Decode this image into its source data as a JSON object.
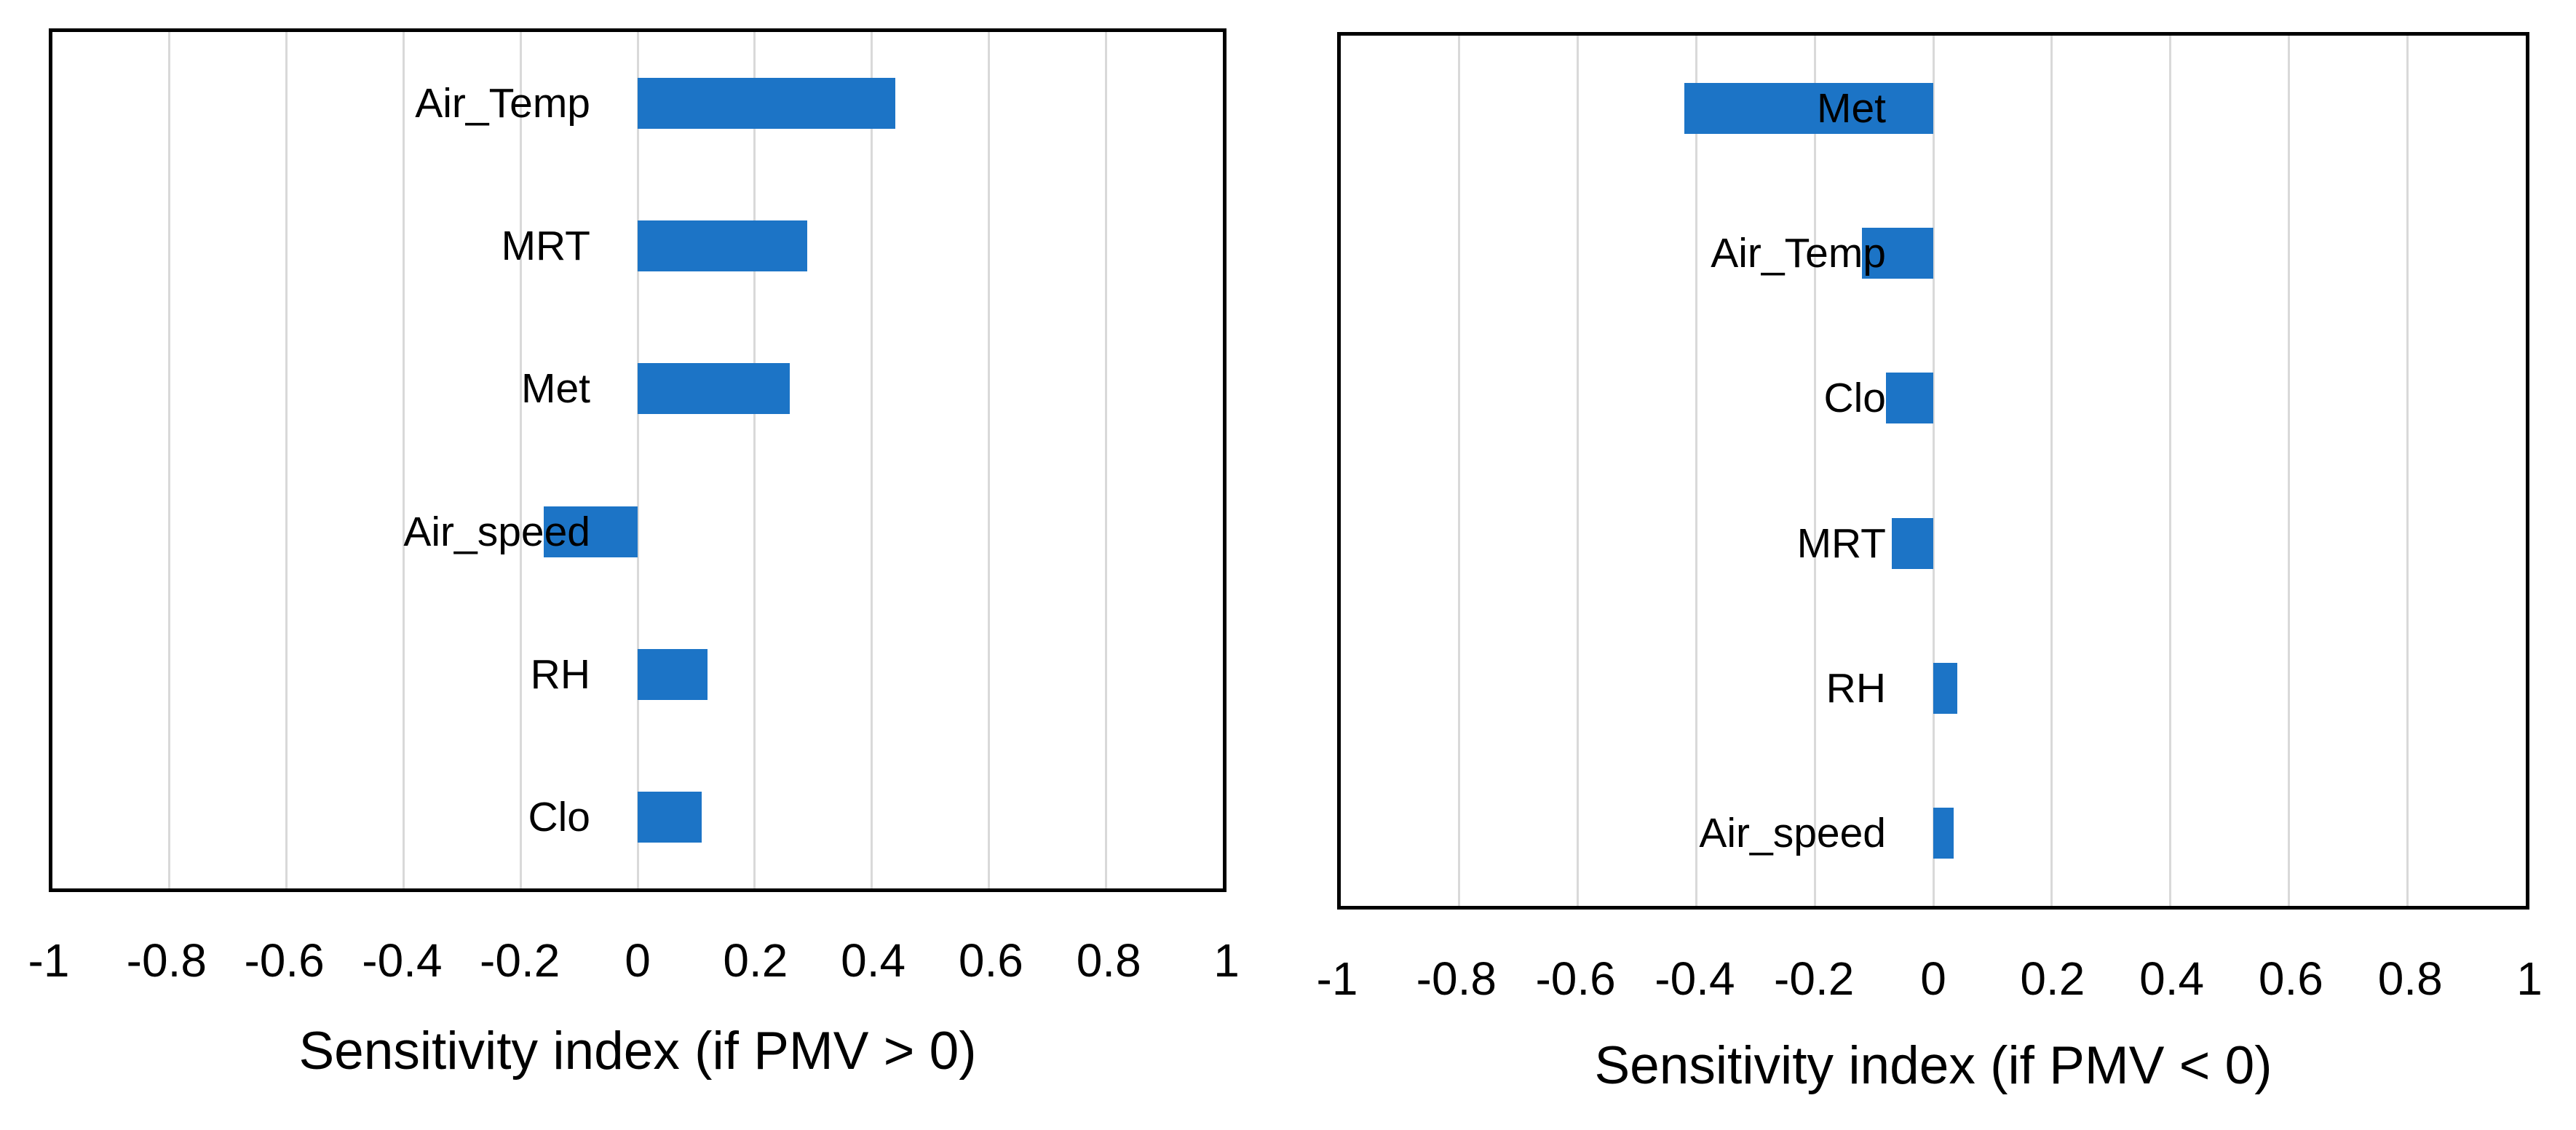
{
  "page": {
    "background_color": "#FFFFFF",
    "text_color": "#000000"
  },
  "chart_data": [
    {
      "type": "bar",
      "orientation": "horizontal",
      "title": "",
      "xlabel": "Sensitivity index (if PMV > 0)",
      "ylabel": "",
      "categories": [
        "Air_Temp",
        "MRT",
        "Met",
        "Air_speed",
        "RH",
        "Clo"
      ],
      "values": [
        0.44,
        0.29,
        0.26,
        -0.16,
        0.12,
        0.11
      ],
      "xlim": [
        -1,
        1
      ],
      "xtick_labels": [
        "-1",
        "-0.8",
        "-0.6",
        "-0.4",
        "-0.2",
        "0",
        "0.2",
        "0.4",
        "0.6",
        "0.8",
        "1"
      ],
      "grid": true,
      "legend": "none",
      "bar_color": "#1C74C6",
      "gridline_color": "#D9D9D9",
      "plot_border_color": "#000000"
    },
    {
      "type": "bar",
      "orientation": "horizontal",
      "title": "",
      "xlabel": "Sensitivity index (if PMV < 0)",
      "ylabel": "",
      "categories": [
        "Met",
        "Air_Temp",
        "Clo",
        "MRT",
        "RH",
        "Air_speed"
      ],
      "values": [
        -0.42,
        -0.12,
        -0.08,
        -0.07,
        0.04,
        0.035
      ],
      "xlim": [
        -1,
        1
      ],
      "xtick_labels": [
        "-1",
        "-0.8",
        "-0.6",
        "-0.4",
        "-0.2",
        "0",
        "0.2",
        "0.4",
        "0.6",
        "0.8",
        "1"
      ],
      "grid": true,
      "legend": "none",
      "bar_color": "#1C74C6",
      "gridline_color": "#D9D9D9",
      "plot_border_color": "#000000"
    }
  ]
}
